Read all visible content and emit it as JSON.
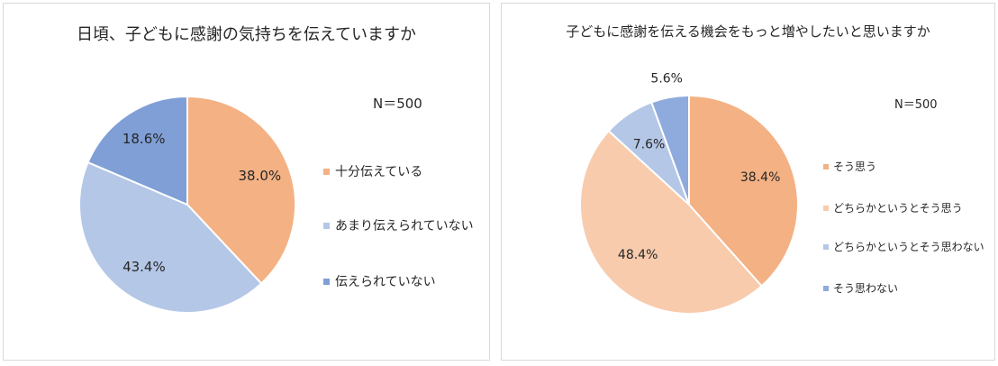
{
  "chart_data": [
    {
      "type": "pie",
      "title": "日頃、子どもに感謝の気持ちを伝えていますか",
      "note": "N＝500",
      "categories": [
        "十分伝えている",
        "あまり伝えられていない",
        "伝えられていない"
      ],
      "values": [
        38.0,
        43.4,
        18.6
      ],
      "data_labels": [
        "38.0%",
        "43.4%",
        "18.6%"
      ],
      "colors": [
        "#f4b183",
        "#b4c7e7",
        "#7f9fd6"
      ],
      "legend_position": "right"
    },
    {
      "type": "pie",
      "title": "子どもに感謝を伝える機会をもっと増やしたいと思いますか",
      "note": "N＝500",
      "categories": [
        "そう思う",
        "どちらかというとそう思う",
        "どちらかというとそう思わない",
        "そう思わない"
      ],
      "values": [
        38.4,
        48.4,
        7.6,
        5.6
      ],
      "data_labels": [
        "38.4%",
        "48.4%",
        "7.6%",
        "5.6%"
      ],
      "colors": [
        "#f4b183",
        "#f8cbad",
        "#b4c7e7",
        "#8faadc"
      ],
      "legend_position": "right"
    }
  ]
}
